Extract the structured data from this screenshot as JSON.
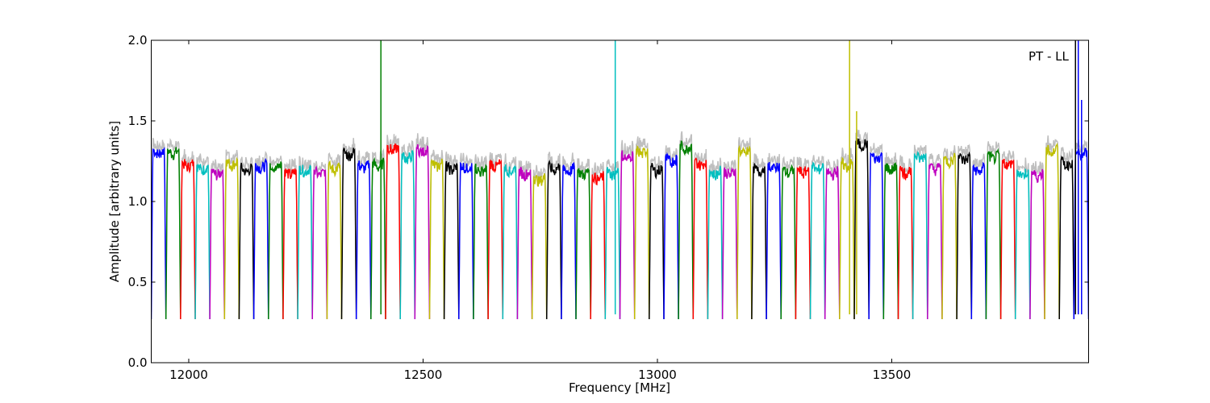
{
  "chart_data": {
    "type": "line",
    "title": "",
    "xlabel": "Frequency [MHz]",
    "ylabel": "Amplitude [arbitrary units]",
    "annotation": "PT - LL",
    "xlim": [
      11920,
      13920
    ],
    "ylim": [
      0.0,
      2.0
    ],
    "xticks": [
      12000,
      12500,
      13000,
      13500
    ],
    "xtick_labels": [
      "12000",
      "12500",
      "13000",
      "13500"
    ],
    "yticks": [
      0.0,
      0.5,
      1.0,
      1.5,
      2.0
    ],
    "ytick_labels": [
      "0.0",
      "0.5",
      "1.0",
      "1.5",
      "2.0"
    ],
    "grid": false,
    "legend": "none",
    "channel_count": 64,
    "channel_start_mhz": 11920,
    "channel_spacing_mhz": 31.25,
    "color_cycle": [
      "#0000ff",
      "#008000",
      "#ff0000",
      "#00bfbf",
      "#bf00bf",
      "#bfbf00",
      "#000000"
    ],
    "background_trace_color": "#bfbfbf",
    "channel_peak_amplitudes": [
      1.33,
      1.33,
      1.25,
      1.23,
      1.2,
      1.26,
      1.22,
      1.24,
      1.24,
      1.2,
      1.22,
      1.2,
      1.23,
      1.32,
      1.24,
      1.25,
      1.35,
      1.3,
      1.34,
      1.25,
      1.23,
      1.24,
      1.22,
      1.25,
      1.22,
      1.2,
      1.16,
      1.23,
      1.22,
      1.2,
      1.17,
      1.2,
      1.3,
      1.33,
      1.22,
      1.28,
      1.36,
      1.26,
      1.2,
      1.2,
      1.33,
      1.22,
      1.24,
      1.21,
      1.21,
      1.23,
      1.2,
      1.25,
      1.38,
      1.3,
      1.23,
      1.21,
      1.3,
      1.23,
      1.28,
      1.29,
      1.22,
      1.3,
      1.26,
      1.2,
      1.19,
      1.34,
      1.26,
      1.32
    ],
    "spikes": [
      {
        "x": 12410,
        "y": 2.0,
        "color": "#008000"
      },
      {
        "x": 12910,
        "y": 2.0,
        "color": "#00bfbf"
      },
      {
        "x": 13410,
        "y": 2.0,
        "color": "#bfbf00"
      },
      {
        "x": 13425,
        "y": 1.56,
        "color": "#bfbf00"
      },
      {
        "x": 13892,
        "y": 2.0,
        "color": "#000000"
      },
      {
        "x": 13898,
        "y": 2.0,
        "color": "#0000ff"
      },
      {
        "x": 13905,
        "y": 1.63,
        "color": "#0000ff"
      }
    ]
  }
}
